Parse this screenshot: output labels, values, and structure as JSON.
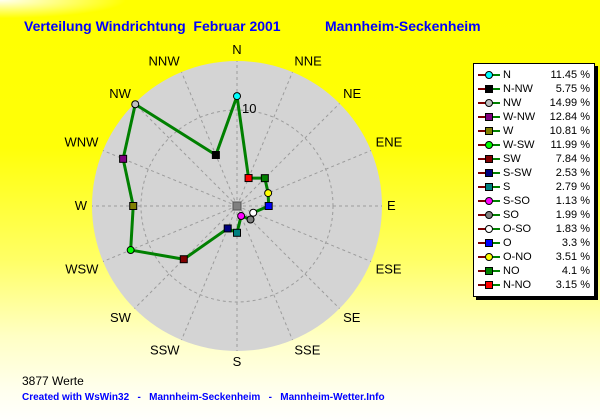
{
  "header": {
    "title": "Verteilung Windrichtung  Februar 2001",
    "station": "Mannheim-Seckenheim"
  },
  "footer": {
    "sample_count": "3877 Werte",
    "credit": "Created with WsWin32   -   Mannheim-Seckenheim   -   Mannheim-Wetter.Info"
  },
  "colors": {
    "title_text": "#0000ff",
    "background_top": "#ffff00",
    "plot_disc": "#d4d4d4",
    "grid": "#9c9c9c",
    "line": "#008000",
    "legend_key_left": "#800000",
    "legend_bg": "#ffffff",
    "center_marker": "#808080"
  },
  "chart_data": {
    "type": "radar",
    "title": "Verteilung Windrichtung Februar 2001",
    "units": "%",
    "ring_value": 10,
    "ring_label": "10",
    "rmax": 15.1,
    "grid": "dashed",
    "legend_position": "right",
    "axis_labels": [
      "N",
      "NNE",
      "NE",
      "ENE",
      "E",
      "ESE",
      "SE",
      "SSE",
      "S",
      "SSW",
      "SW",
      "WSW",
      "W",
      "WNW",
      "NW",
      "NNW"
    ],
    "series": [
      {
        "name": "N",
        "azimuth": 0,
        "value": 11.45,
        "display": "11.45 %",
        "color": "#00ffff",
        "shape": "circle"
      },
      {
        "name": "N-NW",
        "azimuth": 337.5,
        "value": 5.75,
        "display": "5.75 %",
        "color": "#000000",
        "shape": "square"
      },
      {
        "name": "NW",
        "azimuth": 315,
        "value": 14.99,
        "display": "14.99 %",
        "color": "#c0c0c0",
        "shape": "circle"
      },
      {
        "name": "W-NW",
        "azimuth": 292.5,
        "value": 12.84,
        "display": "12.84 %",
        "color": "#800080",
        "shape": "square"
      },
      {
        "name": "W",
        "azimuth": 270,
        "value": 10.81,
        "display": "10.81 %",
        "color": "#808000",
        "shape": "square"
      },
      {
        "name": "W-SW",
        "azimuth": 247.5,
        "value": 11.99,
        "display": "11.99 %",
        "color": "#00ff00",
        "shape": "circle"
      },
      {
        "name": "SW",
        "azimuth": 225,
        "value": 7.84,
        "display": "7.84 %",
        "color": "#800000",
        "shape": "square"
      },
      {
        "name": "S-SW",
        "azimuth": 202.5,
        "value": 2.53,
        "display": "2.53 %",
        "color": "#000080",
        "shape": "square"
      },
      {
        "name": "S",
        "azimuth": 180,
        "value": 2.79,
        "display": "2.79 %",
        "color": "#008080",
        "shape": "square"
      },
      {
        "name": "S-SO",
        "azimuth": 157.5,
        "value": 1.13,
        "display": "1.13 %",
        "color": "#ff00ff",
        "shape": "circle"
      },
      {
        "name": "SO",
        "azimuth": 135,
        "value": 1.99,
        "display": "1.99 %",
        "color": "#808080",
        "shape": "circle"
      },
      {
        "name": "O-SO",
        "azimuth": 112.5,
        "value": 1.83,
        "display": "1.83 %",
        "color": "#ffffff",
        "shape": "circle"
      },
      {
        "name": "O",
        "azimuth": 90,
        "value": 3.3,
        "display": "3.3 %",
        "color": "#0000ff",
        "shape": "square"
      },
      {
        "name": "O-NO",
        "azimuth": 67.5,
        "value": 3.51,
        "display": "3.51 %",
        "color": "#ffff00",
        "shape": "circle"
      },
      {
        "name": "NO",
        "azimuth": 45,
        "value": 4.1,
        "display": "4.1 %",
        "color": "#008000",
        "shape": "square"
      },
      {
        "name": "N-NO",
        "azimuth": 22.5,
        "value": 3.15,
        "display": "3.15 %",
        "color": "#ff0000",
        "shape": "square"
      }
    ]
  }
}
